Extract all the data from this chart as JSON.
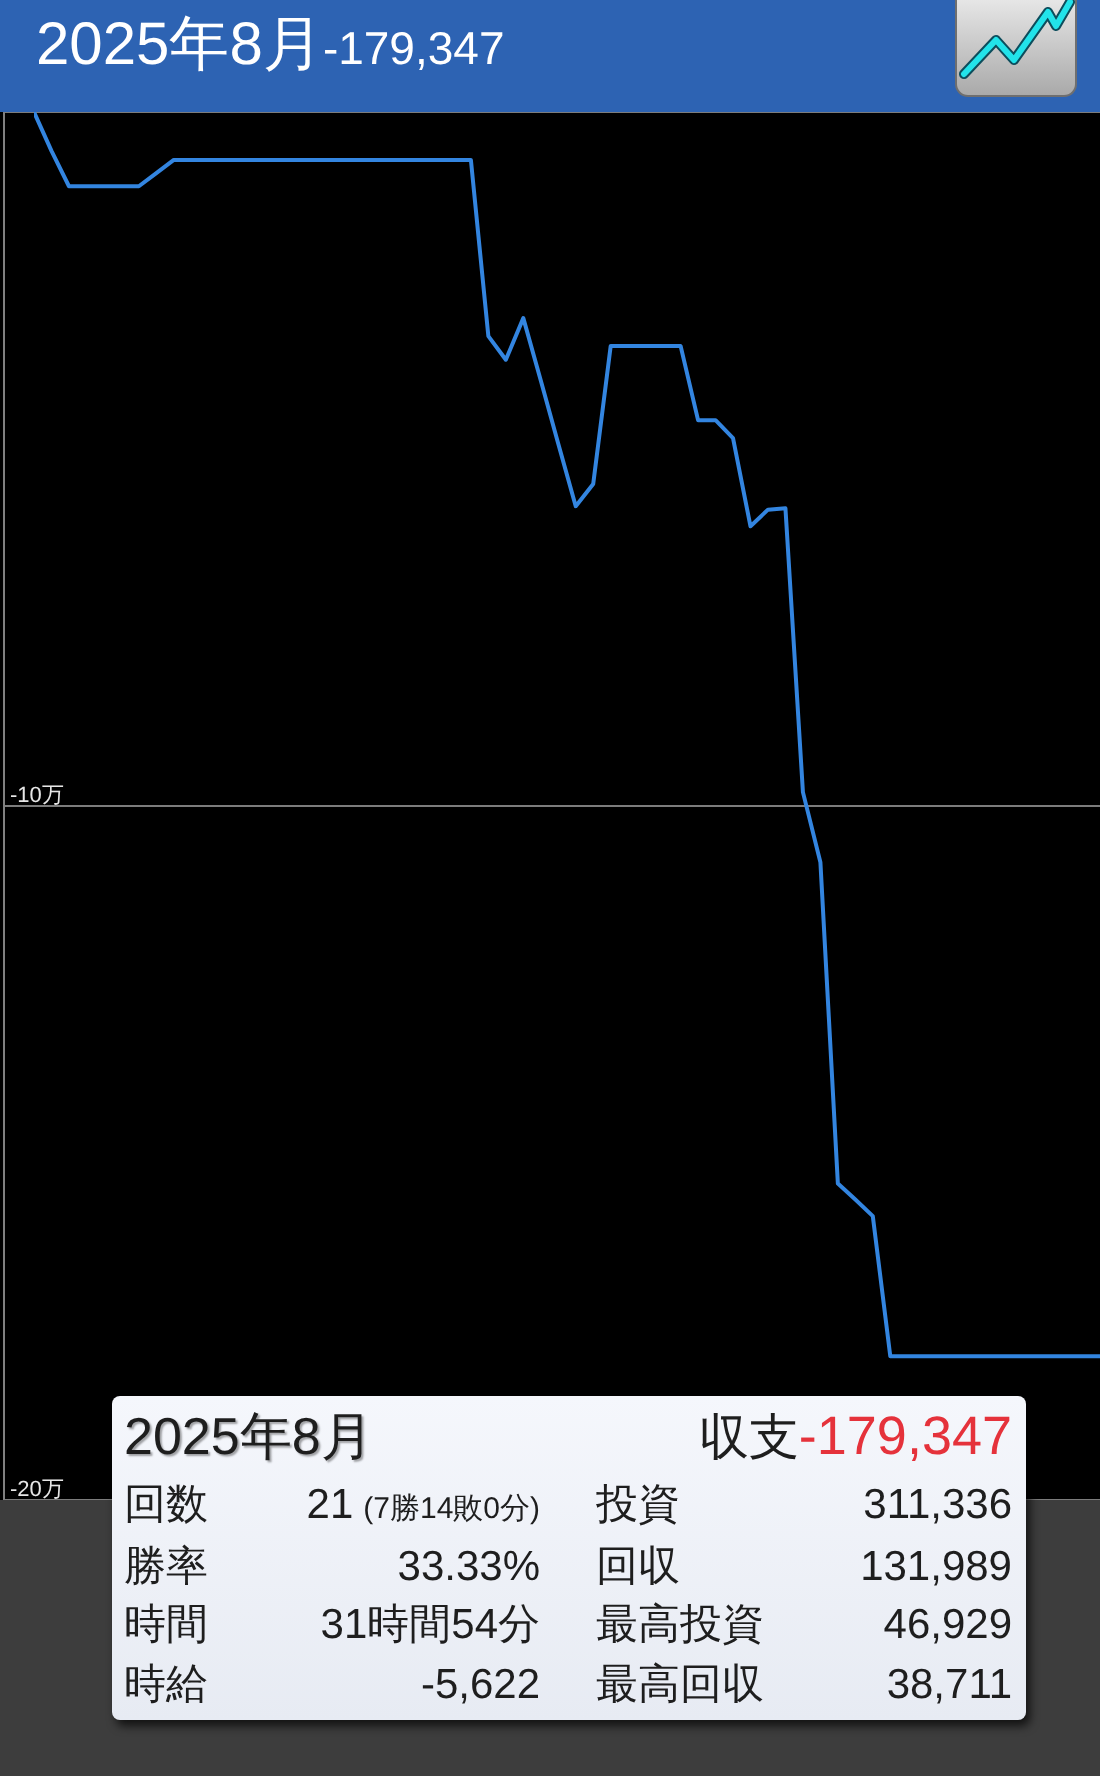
{
  "chart_data": [
    {
      "type": "line",
      "title": "2025年8月",
      "subtitle": "-179,347",
      "categories": [
        null,
        null,
        null,
        null,
        null,
        null,
        null,
        null,
        null,
        null,
        null,
        null,
        null,
        null,
        null,
        null,
        null,
        null,
        null,
        null,
        null,
        null,
        null,
        null,
        null,
        null,
        null,
        null,
        null,
        null,
        null,
        null,
        null,
        null,
        null,
        null,
        null,
        null,
        null,
        null,
        null,
        null,
        null,
        null,
        null,
        null,
        null,
        null,
        null,
        null,
        null,
        null,
        null,
        null,
        null,
        null,
        null,
        null,
        null,
        null,
        null,
        null
      ],
      "values": [
        0,
        -0.56,
        -1.07,
        -1.07,
        -1.07,
        -1.07,
        -1.07,
        -0.88,
        -0.69,
        -0.69,
        -0.69,
        -0.69,
        -0.69,
        -0.69,
        -0.69,
        -0.69,
        -0.69,
        -0.69,
        -0.69,
        -0.69,
        -0.69,
        -0.69,
        -0.69,
        -0.69,
        -0.69,
        -0.69,
        -3.23,
        -3.57,
        -2.97,
        -3.87,
        -4.78,
        -5.68,
        -5.36,
        -3.37,
        -3.37,
        -3.37,
        -3.37,
        -3.37,
        -4.44,
        -4.44,
        -4.7,
        -5.97,
        -5.73,
        -5.71,
        -9.8,
        -10.81,
        -15.44,
        -15.67,
        -15.91,
        -17.93,
        -17.93,
        -17.93,
        -17.93,
        -17.93,
        -17.93,
        -17.93,
        -17.93,
        -17.93,
        -17.93,
        -17.93,
        -17.93,
        -17.93
      ],
      "color": "#3385e0",
      "ylim": [
        -20,
        0
      ],
      "yticks": [
        {
          "value": -10,
          "label": "-10万"
        },
        {
          "value": -20,
          "label": "-20万"
        }
      ],
      "grid": "y",
      "tick_labels": "y"
    },
    {
      "type": "other",
      "title": "2025年8月",
      "annotations": [
        "収支",
        "-179,347",
        "回数",
        "21",
        "(7勝14敗0分)",
        "投資",
        "311,336",
        "勝率",
        "33.33%",
        "回収",
        "131,989",
        "時間",
        "31時間54分",
        "最高投資",
        "46,929",
        "時給",
        "-5,622",
        "最高回収",
        "38,711"
      ]
    }
  ]
}
